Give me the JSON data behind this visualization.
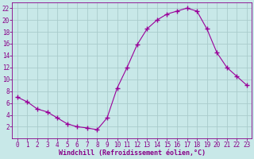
{
  "x": [
    0,
    1,
    2,
    3,
    4,
    5,
    6,
    7,
    8,
    9,
    10,
    11,
    12,
    13,
    14,
    15,
    16,
    17,
    18,
    19,
    20,
    21,
    22,
    23
  ],
  "y": [
    7,
    6.2,
    5,
    4.5,
    3.5,
    2.5,
    2.0,
    1.8,
    1.5,
    3.5,
    8.5,
    12,
    15.8,
    18.5,
    20,
    21,
    21.5,
    22,
    21.5,
    18.5,
    14.5,
    12,
    10.5,
    9
  ],
  "line_color": "#990099",
  "marker": "+",
  "marker_size": 4,
  "marker_lw": 1.0,
  "bg_color": "#c8e8e8",
  "grid_color": "#aacccc",
  "xlabel": "Windchill (Refroidissement éolien,°C)",
  "xlabel_color": "#880088",
  "tick_color": "#880088",
  "ylim": [
    0,
    23
  ],
  "xlim": [
    -0.5,
    23.5
  ],
  "yticks": [
    2,
    4,
    6,
    8,
    10,
    12,
    14,
    16,
    18,
    20,
    22
  ],
  "xticks": [
    0,
    1,
    2,
    3,
    4,
    5,
    6,
    7,
    8,
    9,
    10,
    11,
    12,
    13,
    14,
    15,
    16,
    17,
    18,
    19,
    20,
    21,
    22,
    23
  ],
  "tick_fontsize": 5.5,
  "xlabel_fontsize": 6.0
}
